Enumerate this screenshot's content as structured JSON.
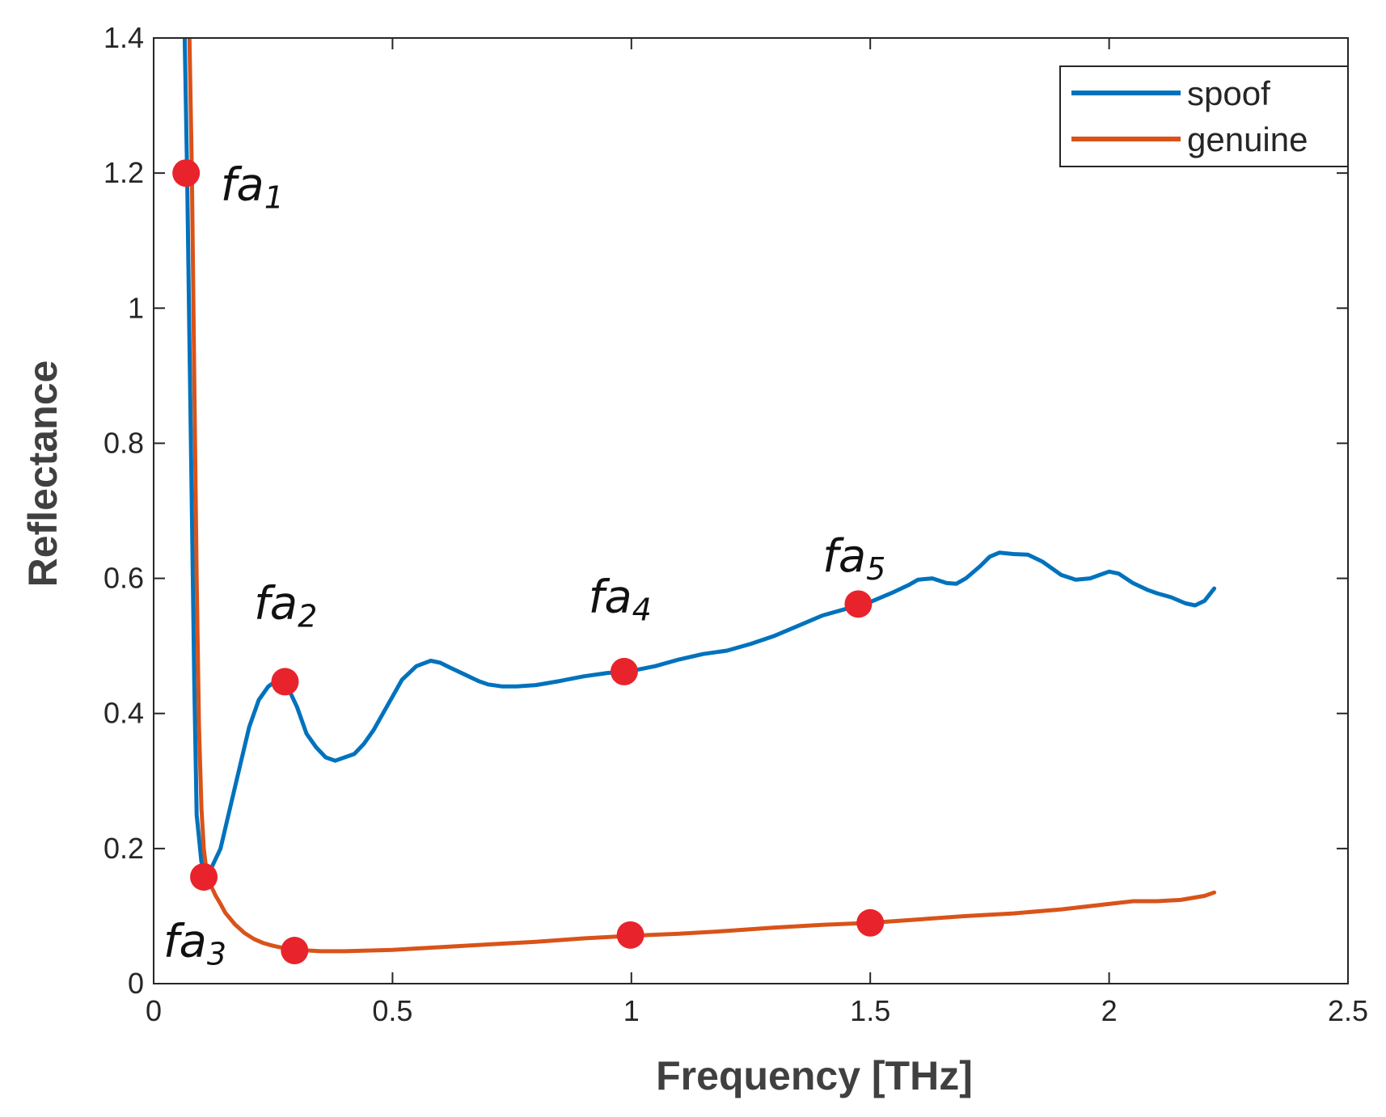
{
  "chart_data": {
    "type": "line",
    "title": "",
    "xlabel": "Frequency [THz]",
    "ylabel": "Reflectance",
    "xlim": [
      0,
      2.5
    ],
    "ylim": [
      0,
      1.4
    ],
    "xticks": [
      0,
      0.5,
      1,
      1.5,
      2,
      2.5
    ],
    "xtick_labels": [
      "0",
      "0.5",
      "1",
      "1.5",
      "2",
      "2.5"
    ],
    "yticks": [
      0,
      0.2,
      0.4,
      0.6,
      0.8,
      1,
      1.2,
      1.4
    ],
    "ytick_labels": [
      "0",
      "0.2",
      "0.4",
      "0.6",
      "0.8",
      "1",
      "1.2",
      "1.4"
    ],
    "grid": false,
    "legend_position": "top-right",
    "series": [
      {
        "name": "spoof",
        "color": "#0072BD",
        "x": [
          0.065,
          0.07,
          0.075,
          0.08,
          0.085,
          0.09,
          0.1,
          0.11,
          0.12,
          0.14,
          0.16,
          0.18,
          0.2,
          0.22,
          0.24,
          0.26,
          0.28,
          0.3,
          0.32,
          0.34,
          0.36,
          0.38,
          0.4,
          0.42,
          0.44,
          0.46,
          0.48,
          0.5,
          0.52,
          0.55,
          0.58,
          0.6,
          0.62,
          0.65,
          0.68,
          0.7,
          0.73,
          0.76,
          0.8,
          0.85,
          0.9,
          0.95,
          1.0,
          1.05,
          1.1,
          1.15,
          1.2,
          1.25,
          1.3,
          1.35,
          1.4,
          1.45,
          1.5,
          1.55,
          1.58,
          1.6,
          1.63,
          1.66,
          1.68,
          1.7,
          1.73,
          1.75,
          1.77,
          1.8,
          1.83,
          1.86,
          1.9,
          1.93,
          1.96,
          1.98,
          2.0,
          2.02,
          2.05,
          2.08,
          2.1,
          2.13,
          2.16,
          2.18,
          2.2,
          2.22
        ],
        "y": [
          1.4,
          1.2,
          0.95,
          0.7,
          0.45,
          0.25,
          0.18,
          0.16,
          0.17,
          0.2,
          0.26,
          0.32,
          0.38,
          0.42,
          0.44,
          0.45,
          0.44,
          0.41,
          0.37,
          0.35,
          0.335,
          0.33,
          0.335,
          0.34,
          0.355,
          0.375,
          0.4,
          0.425,
          0.45,
          0.47,
          0.478,
          0.475,
          0.468,
          0.458,
          0.448,
          0.443,
          0.44,
          0.44,
          0.442,
          0.448,
          0.455,
          0.46,
          0.463,
          0.47,
          0.48,
          0.488,
          0.493,
          0.503,
          0.515,
          0.53,
          0.545,
          0.555,
          0.565,
          0.58,
          0.59,
          0.598,
          0.6,
          0.593,
          0.592,
          0.6,
          0.618,
          0.632,
          0.638,
          0.636,
          0.635,
          0.625,
          0.605,
          0.598,
          0.6,
          0.605,
          0.61,
          0.607,
          0.593,
          0.583,
          0.578,
          0.572,
          0.563,
          0.56,
          0.567,
          0.585
        ]
      },
      {
        "name": "genuine",
        "color": "#D95319",
        "x": [
          0.075,
          0.08,
          0.085,
          0.09,
          0.095,
          0.1,
          0.105,
          0.11,
          0.12,
          0.13,
          0.14,
          0.15,
          0.17,
          0.19,
          0.21,
          0.23,
          0.25,
          0.27,
          0.3,
          0.35,
          0.4,
          0.5,
          0.6,
          0.7,
          0.8,
          0.9,
          1.0,
          1.1,
          1.2,
          1.3,
          1.4,
          1.5,
          1.6,
          1.7,
          1.8,
          1.9,
          2.0,
          2.05,
          2.1,
          2.15,
          2.2,
          2.22
        ],
        "y": [
          1.4,
          1.2,
          0.9,
          0.6,
          0.38,
          0.26,
          0.2,
          0.17,
          0.145,
          0.13,
          0.118,
          0.105,
          0.088,
          0.075,
          0.066,
          0.06,
          0.056,
          0.053,
          0.05,
          0.048,
          0.048,
          0.05,
          0.054,
          0.058,
          0.062,
          0.067,
          0.071,
          0.074,
          0.078,
          0.083,
          0.087,
          0.09,
          0.095,
          0.1,
          0.104,
          0.11,
          0.118,
          0.122,
          0.122,
          0.124,
          0.13,
          0.135
        ]
      }
    ],
    "markers": {
      "color": "#E8232C",
      "points": [
        {
          "x": 0.068,
          "y": 1.2
        },
        {
          "x": 0.275,
          "y": 0.447
        },
        {
          "x": 0.105,
          "y": 0.158
        },
        {
          "x": 0.985,
          "y": 0.462
        },
        {
          "x": 1.475,
          "y": 0.562
        },
        {
          "x": 0.295,
          "y": 0.049
        },
        {
          "x": 0.998,
          "y": 0.072
        },
        {
          "x": 1.5,
          "y": 0.09
        }
      ]
    },
    "annotations": [
      {
        "base": "fa",
        "sub": "1",
        "x": 0.14,
        "y": 1.16
      },
      {
        "base": "fa",
        "sub": "2",
        "x": 0.21,
        "y": 0.54
      },
      {
        "base": "fa",
        "sub": "3",
        "x": 0.02,
        "y": 0.04
      },
      {
        "base": "fa",
        "sub": "4",
        "x": 0.91,
        "y": 0.55
      },
      {
        "base": "fa",
        "sub": "5",
        "x": 1.4,
        "y": 0.61
      }
    ]
  }
}
